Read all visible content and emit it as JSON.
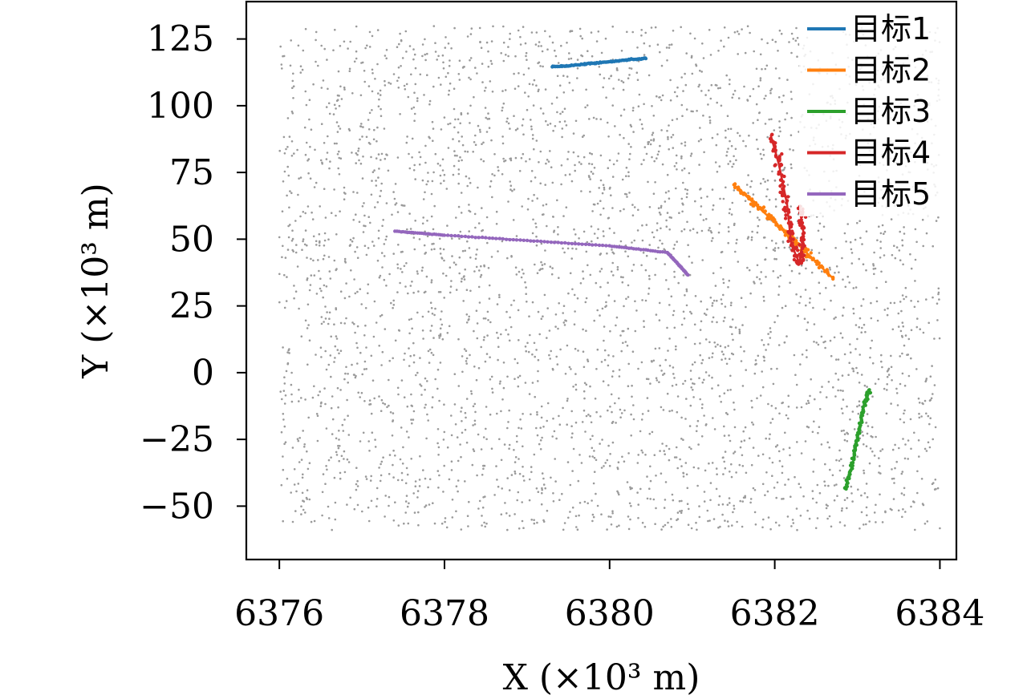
{
  "chart_data": {
    "type": "scatter",
    "title": "",
    "xlabel": "X (×10³ m)",
    "ylabel": "Y (×10³ m)",
    "xlim": [
      6375.6,
      6384.2
    ],
    "ylim": [
      -70,
      139
    ],
    "x_ticks": [
      6376,
      6378,
      6380,
      6382,
      6384
    ],
    "y_ticks": [
      -50,
      -25,
      0,
      25,
      50,
      75,
      100,
      125
    ],
    "legend": "top-right",
    "grid": false,
    "clutter": {
      "description_color": "#9a9a9a",
      "x_range": [
        6376,
        6384
      ],
      "y_range": [
        -59,
        130
      ],
      "count": 3600
    },
    "series": [
      {
        "name": "目标1",
        "color": "#1f77b4",
        "x": [
          6379.3,
          6379.6,
          6379.9,
          6380.2,
          6380.45
        ],
        "y": [
          114.5,
          115.3,
          116.2,
          117.1,
          117.8
        ]
      },
      {
        "name": "目标2",
        "color": "#ff7f0e",
        "x": [
          6381.5,
          6381.8,
          6382.1,
          6382.4,
          6382.7
        ],
        "y": [
          70.5,
          62,
          53.5,
          44.5,
          35.5
        ]
      },
      {
        "name": "目标3",
        "color": "#2ca02c",
        "x": [
          6382.85,
          6382.95,
          6383.02,
          6383.08,
          6383.15
        ],
        "y": [
          -44,
          -33,
          -22,
          -12,
          -6
        ]
      },
      {
        "name": "目标4",
        "color": "#d62728",
        "x": [
          6381.95,
          6382.05,
          6382.15,
          6382.2,
          6382.3,
          6382.35,
          6382.3
        ],
        "y": [
          89,
          78,
          63,
          48,
          41,
          52,
          62
        ]
      },
      {
        "name": "目标5",
        "color": "#9467bd",
        "x": [
          6377.4,
          6378.0,
          6379.0,
          6380.0,
          6380.7,
          6380.85,
          6380.95
        ],
        "y": [
          53.0,
          51.5,
          49.5,
          47.5,
          45.0,
          40.0,
          36.5
        ]
      }
    ]
  }
}
